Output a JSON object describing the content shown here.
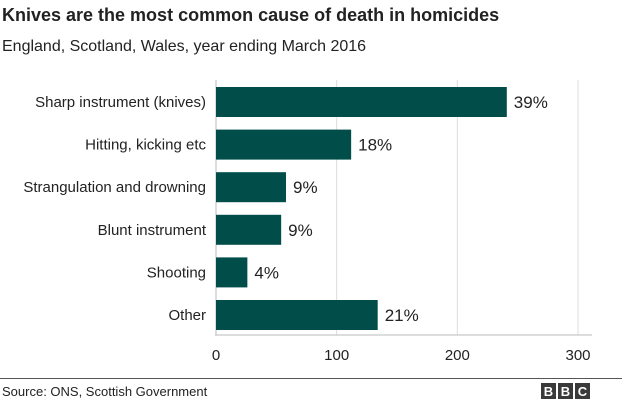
{
  "header": {
    "title": "Knives are the most common cause of death in homicides",
    "subtitle": "England, Scotland, Wales, year ending March 2016"
  },
  "footer": {
    "source": "Source: ONS, Scottish Government",
    "logo_letters": [
      "B",
      "B",
      "C"
    ]
  },
  "colors": {
    "bar": "#004d4a",
    "grid": "#dddddd",
    "text": "#222222"
  },
  "chart_data": {
    "type": "bar",
    "orientation": "horizontal",
    "title": "Knives are the most common cause of death in homicides",
    "subtitle": "England, Scotland, Wales, year ending March 2016",
    "categories": [
      "Sharp instrument (knives)",
      "Hitting, kicking etc",
      "Strangulation and drowning",
      "Blunt instrument",
      "Shooting",
      "Other"
    ],
    "values": [
      241,
      112,
      58,
      54,
      26,
      134
    ],
    "data_labels": [
      "39%",
      "18%",
      "9%",
      "9%",
      "4%",
      "21%"
    ],
    "xlim": [
      0,
      300
    ],
    "xticks": [
      0,
      100,
      200,
      300
    ],
    "grid": true
  }
}
